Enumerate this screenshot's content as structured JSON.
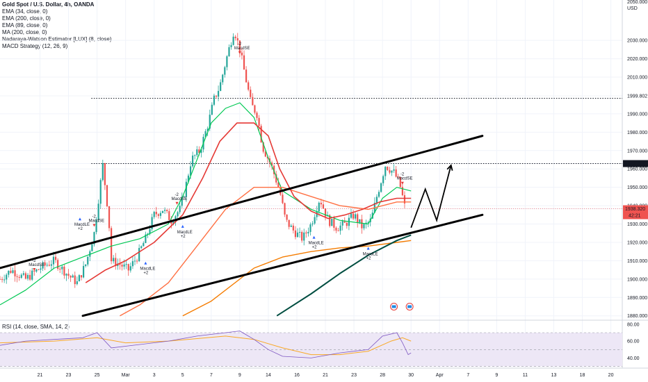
{
  "header": {
    "title": "Gold Spot / U.S. Dollar, 4h, OANDA",
    "indicators": [
      "EMA (34, close, 0)",
      "EMA (200, close, 0)",
      "EMA (89, close, 0)",
      "MA (200, close, 0)",
      "Nadaraya-Watson Estimator [LUX] (8, close)",
      "MACD Strategy (12, 26, 9)"
    ]
  },
  "rsi": {
    "label": "RSI (14, close, SMA, 14, 2)",
    "ticks": [
      "80.00",
      "60.00",
      "40.00"
    ],
    "tick_values": [
      80,
      60,
      40
    ],
    "range": [
      28,
      84
    ],
    "band": [
      30,
      70
    ]
  },
  "colors": {
    "up": "#26a69a",
    "down": "#ef5350",
    "ema34": "#00c853",
    "ema200": "#f57c00",
    "ema89": "#ff7043",
    "ma200": "#004d40",
    "nadaraya": "#e53935",
    "rsi_line": "#7e57c2",
    "rsi_ma": "#f9a825",
    "rsi_band": "#ede7f6",
    "drawing": "#000000",
    "price_badge": "#ef5350"
  },
  "chart_data": {
    "type": "line",
    "symbol": "Gold Spot / U.S. Dollar",
    "price_axis": {
      "unit": "USD",
      "ticks": [
        "2030.000",
        "2020.000",
        "2010.000",
        "1999.802",
        "1990.000",
        "1980.000",
        "1970.000",
        "1962.909",
        "1960.000",
        "1950.000",
        "1940.000",
        "1938.320",
        "1930.000",
        "1920.000",
        "1910.000",
        "1900.000",
        "1890.000",
        "1880.000"
      ],
      "range": [
        1878,
        2052
      ],
      "top_label": "2050.000"
    },
    "time_axis": {
      "ticks": [
        "21",
        "23",
        "25",
        "Mar",
        "3",
        "5",
        "7",
        "9",
        "14",
        "16",
        "21",
        "23",
        "28",
        "30",
        "Apr",
        "7",
        "9",
        "11",
        "13",
        "18",
        "20"
      ],
      "tick_t": [
        0.5,
        1.5,
        2.5,
        3.5,
        4.5,
        5.5,
        6.5,
        7.5,
        8.5,
        9.5,
        10.5,
        11.5,
        12.5,
        13.5,
        14.5,
        15.5,
        16.5,
        17.5,
        18.5,
        19.5,
        20.5
      ],
      "t_range": [
        -0.9,
        20.9
      ]
    },
    "price_lines": [
      {
        "label": "1998.465",
        "value": 1998.465,
        "style": "dotted"
      },
      {
        "label": "1962.909",
        "value": 1962.909,
        "style": "dotted"
      }
    ],
    "last_price": {
      "label": "1938.320",
      "value": 1938.32,
      "countdown": "42:21"
    },
    "trendlines": [
      {
        "name": "channel-upper",
        "from": [
          -0.9,
          1906
        ],
        "to": [
          16.0,
          1978
        ]
      },
      {
        "name": "channel-lower",
        "from": [
          2.0,
          1880
        ],
        "to": [
          16.0,
          1935
        ]
      }
    ],
    "projection": [
      [
        13.5,
        1928
      ],
      [
        14.0,
        1949
      ],
      [
        14.4,
        1932
      ],
      [
        14.9,
        1962
      ]
    ],
    "close_path": [
      [
        -0.9,
        1900
      ],
      [
        -0.5,
        1905
      ],
      [
        0.0,
        1900
      ],
      [
        0.5,
        1906
      ],
      [
        1.0,
        1910
      ],
      [
        1.5,
        1902
      ],
      [
        1.8,
        1898
      ],
      [
        2.1,
        1908
      ],
      [
        2.4,
        1925
      ],
      [
        2.7,
        1962
      ],
      [
        2.9,
        1935
      ],
      [
        3.0,
        1910
      ],
      [
        3.3,
        1908
      ],
      [
        3.6,
        1905
      ],
      [
        3.9,
        1912
      ],
      [
        4.2,
        1922
      ],
      [
        4.5,
        1935
      ],
      [
        4.8,
        1938
      ],
      [
        5.1,
        1932
      ],
      [
        5.4,
        1938
      ],
      [
        5.6,
        1950
      ],
      [
        5.8,
        1965
      ],
      [
        6.1,
        1970
      ],
      [
        6.4,
        1985
      ],
      [
        6.6,
        1998
      ],
      [
        6.8,
        2005
      ],
      [
        7.0,
        2018
      ],
      [
        7.3,
        2036
      ],
      [
        7.5,
        2025
      ],
      [
        7.7,
        2010
      ],
      [
        7.9,
        1995
      ],
      [
        8.1,
        1990
      ],
      [
        8.3,
        1972
      ],
      [
        8.6,
        1962
      ],
      [
        8.9,
        1948
      ],
      [
        9.1,
        1932
      ],
      [
        9.4,
        1926
      ],
      [
        9.7,
        1922
      ],
      [
        10.0,
        1930
      ],
      [
        10.3,
        1944
      ],
      [
        10.6,
        1932
      ],
      [
        10.9,
        1928
      ],
      [
        11.2,
        1930
      ],
      [
        11.5,
        1935
      ],
      [
        11.8,
        1928
      ],
      [
        12.1,
        1932
      ],
      [
        12.3,
        1945
      ],
      [
        12.6,
        1962
      ],
      [
        12.9,
        1958
      ],
      [
        13.1,
        1952
      ],
      [
        13.3,
        1938
      ]
    ],
    "series": [
      {
        "name": "EMA (34, close, 0)",
        "points": [
          [
            -0.9,
            1886
          ],
          [
            0,
            1894
          ],
          [
            1,
            1906
          ],
          [
            2,
            1912
          ],
          [
            3,
            1918
          ],
          [
            4,
            1922
          ],
          [
            5,
            1930
          ],
          [
            5.5,
            1945
          ],
          [
            6,
            1965
          ],
          [
            6.5,
            1985
          ],
          [
            7,
            1993
          ],
          [
            7.5,
            1996
          ],
          [
            8,
            1988
          ],
          [
            8.5,
            1966
          ],
          [
            9,
            1948
          ],
          [
            10,
            1938
          ],
          [
            11,
            1932
          ],
          [
            12,
            1930
          ],
          [
            12.5,
            1944
          ],
          [
            13,
            1950
          ],
          [
            13.5,
            1948
          ]
        ]
      },
      {
        "name": "EMA (89, close, 0)",
        "points": [
          [
            3.3,
            1880
          ],
          [
            4,
            1886
          ],
          [
            5,
            1898
          ],
          [
            6,
            1918
          ],
          [
            7,
            1938
          ],
          [
            8,
            1950
          ],
          [
            9,
            1950
          ],
          [
            10,
            1945
          ],
          [
            11,
            1940
          ],
          [
            12,
            1938
          ],
          [
            13,
            1942
          ],
          [
            13.5,
            1942
          ]
        ]
      },
      {
        "name": "EMA (200, close, 0)",
        "points": [
          [
            5.5,
            1880
          ],
          [
            6.5,
            1888
          ],
          [
            8,
            1906
          ],
          [
            9,
            1912
          ],
          [
            10,
            1915
          ],
          [
            11,
            1917
          ],
          [
            12,
            1918
          ],
          [
            13,
            1920
          ],
          [
            13.5,
            1921
          ]
        ]
      },
      {
        "name": "MA (200, close, 0)",
        "points": [
          [
            8.8,
            1880
          ],
          [
            10,
            1892
          ],
          [
            11,
            1903
          ],
          [
            12,
            1913
          ],
          [
            13,
            1921
          ],
          [
            13.5,
            1924
          ]
        ]
      },
      {
        "name": "Nadaraya-Watson Estimator [LUX] (8, close)",
        "points": [
          [
            2.1,
            1898
          ],
          [
            2.8,
            1905
          ],
          [
            3.5,
            1910
          ],
          [
            4.5,
            1920
          ],
          [
            5.5,
            1935
          ],
          [
            6.2,
            1955
          ],
          [
            6.8,
            1975
          ],
          [
            7.4,
            1985
          ],
          [
            8.0,
            1985
          ],
          [
            8.5,
            1978
          ],
          [
            8.9,
            1960
          ],
          [
            9.4,
            1945
          ],
          [
            10.0,
            1937
          ],
          [
            10.6,
            1933
          ],
          [
            11.2,
            1935
          ],
          [
            11.8,
            1938
          ],
          [
            12.4,
            1942
          ],
          [
            13.0,
            1944
          ],
          [
            13.5,
            1944
          ]
        ]
      }
    ],
    "signals": [
      {
        "label": "MacdSE",
        "qty": "-2",
        "t": 0.3,
        "price": 1906,
        "side": "short"
      },
      {
        "label": "MacdLE",
        "qty": "+2",
        "t": 1.9,
        "price": 1932,
        "side": "long"
      },
      {
        "label": "MacdSE",
        "qty": "-2",
        "t": 2.4,
        "price": 1930,
        "side": "short"
      },
      {
        "label": "MacdLE",
        "qty": "+2",
        "t": 4.2,
        "price": 1908,
        "side": "long"
      },
      {
        "label": "MacdSE",
        "qty": "-2",
        "t": 5.3,
        "price": 1942,
        "side": "short"
      },
      {
        "label": "MacdLE",
        "qty": "+2",
        "t": 5.5,
        "price": 1928,
        "side": "long"
      },
      {
        "label": "MacdSE",
        "qty": "-2",
        "t": 7.5,
        "price": 2024,
        "side": "short"
      },
      {
        "label": "MacdLE",
        "qty": "+2",
        "t": 10.1,
        "price": 1922,
        "side": "long"
      },
      {
        "label": "MacdLE",
        "qty": "+2",
        "t": 12.0,
        "price": 1916,
        "side": "long"
      },
      {
        "label": "MacdSE",
        "qty": "-2",
        "t": 13.2,
        "price": 1953,
        "side": "short"
      }
    ],
    "rsi_series": {
      "line": [
        [
          -0.9,
          55
        ],
        [
          0,
          60
        ],
        [
          1,
          62
        ],
        [
          2,
          64
        ],
        [
          2.5,
          70
        ],
        [
          3,
          52
        ],
        [
          4,
          56
        ],
        [
          5,
          60
        ],
        [
          6,
          66
        ],
        [
          7,
          70
        ],
        [
          7.5,
          72
        ],
        [
          8,
          62
        ],
        [
          8.5,
          50
        ],
        [
          9,
          42
        ],
        [
          10,
          40
        ],
        [
          11,
          46
        ],
        [
          12,
          50
        ],
        [
          12.5,
          66
        ],
        [
          13,
          70
        ],
        [
          13.2,
          58
        ],
        [
          13.4,
          44
        ],
        [
          13.5,
          46
        ]
      ],
      "ma": [
        [
          -0.9,
          58
        ],
        [
          1,
          60
        ],
        [
          2.5,
          64
        ],
        [
          3.5,
          58
        ],
        [
          5,
          60
        ],
        [
          7,
          66
        ],
        [
          8,
          62
        ],
        [
          9,
          52
        ],
        [
          10,
          44
        ],
        [
          11,
          44
        ],
        [
          12,
          48
        ],
        [
          12.8,
          60
        ],
        [
          13.2,
          64
        ],
        [
          13.5,
          60
        ]
      ]
    }
  }
}
